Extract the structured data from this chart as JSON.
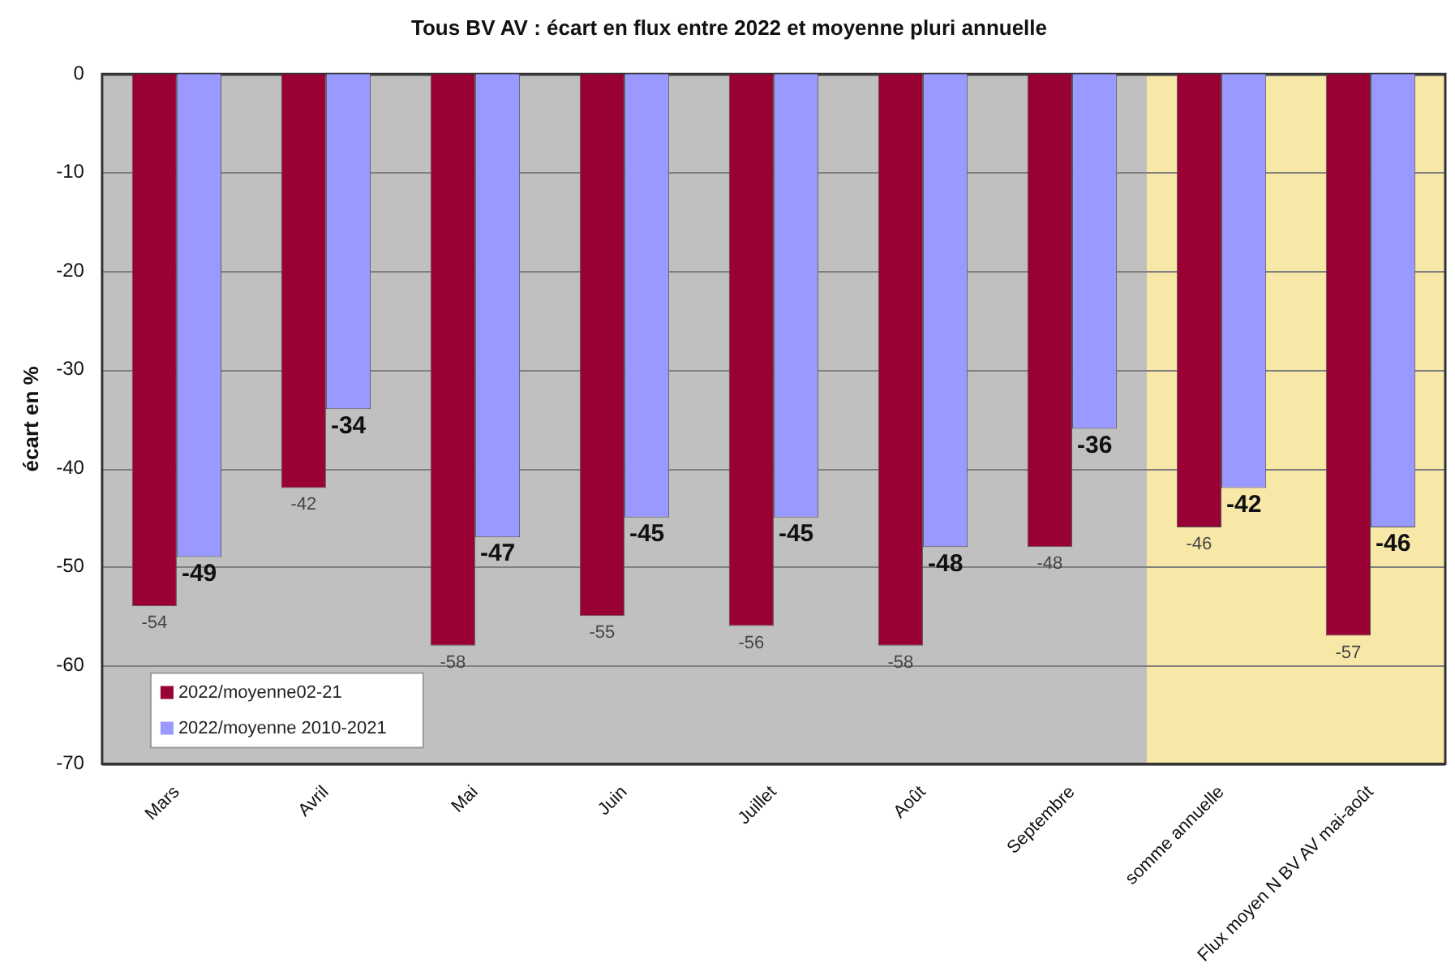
{
  "chart_data": {
    "type": "bar",
    "title": "Tous BV AV : écart en flux entre 2022 et moyenne pluri annuelle",
    "ylabel": "écart en %",
    "categories": [
      "Mars",
      "Avril",
      "Mai",
      "Juin",
      "Juillet",
      "Août",
      "Septembre",
      "somme annuelle",
      "Flux moyen N BV AV mai-août"
    ],
    "series": [
      {
        "name": "2022/moyenne02-21",
        "color": "#990033",
        "values": [
          -54,
          -42,
          -58,
          -55,
          -56,
          -58,
          -48,
          -46,
          -57
        ]
      },
      {
        "name": "2022/moyenne 2010-2021",
        "color": "#9999ff",
        "values": [
          -49,
          -34,
          -47,
          -45,
          -45,
          -48,
          -36,
          -42,
          -46
        ]
      }
    ],
    "ylim": [
      -70,
      0
    ],
    "yticks": [
      -70,
      -60,
      -50,
      -40,
      -30,
      -20,
      -10,
      0
    ],
    "grid": "y",
    "legend": "bottom left",
    "data_labels": true,
    "bands": [
      {
        "axis": "x",
        "from": "Mars",
        "to": "Septembre",
        "color": "#c0c0c0"
      },
      {
        "axis": "x",
        "from": "somme annuelle",
        "to": "Flux moyen N BV AV mai-août",
        "color": "#f8e8a8"
      }
    ]
  }
}
